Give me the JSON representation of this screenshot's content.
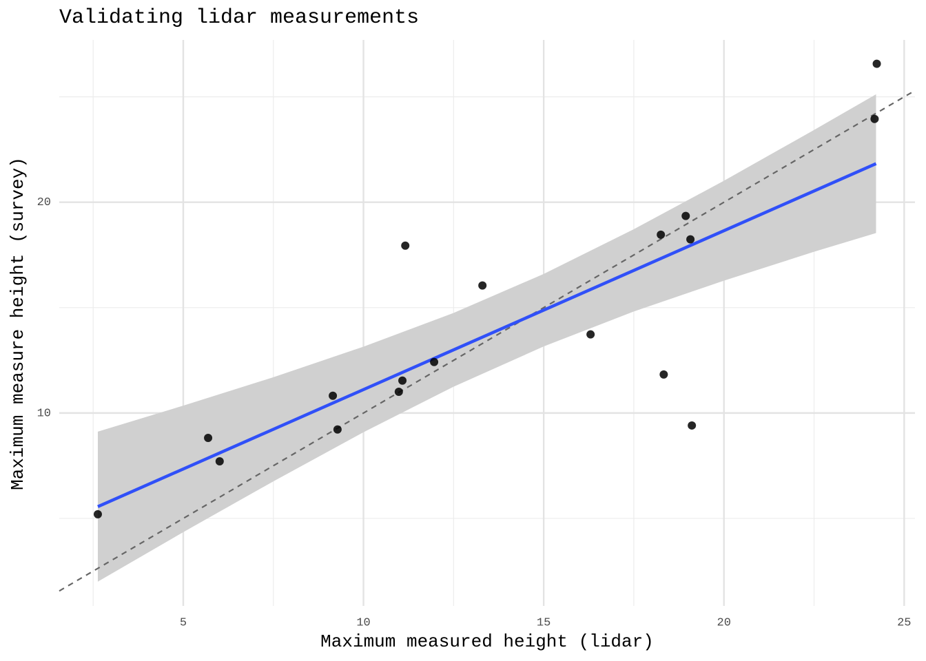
{
  "chart_data": {
    "type": "scatter",
    "title": "Validating lidar measurements",
    "x_label": "Maximum measured height (lidar)",
    "y_label": "Maximum measure height (survey)",
    "xlim": [
      1.56,
      25.3
    ],
    "ylim": [
      0.85,
      27.7
    ],
    "xticks": [
      5,
      10,
      15,
      20,
      25
    ],
    "yticks": [
      10,
      20
    ],
    "x_minor_grid": [
      2.5,
      7.5,
      12.5,
      17.5,
      22.5
    ],
    "y_minor_grid": [
      5,
      15,
      25
    ],
    "grid": true,
    "series": [
      {
        "color": "#000000",
        "x": [
          2.63,
          5.69,
          6.01,
          9.15,
          9.28,
          10.98,
          11.08,
          11.16,
          11.96,
          13.3,
          16.3,
          18.25,
          18.33,
          18.94,
          19.07,
          19.11,
          24.18,
          24.24
        ],
        "values": [
          5.2,
          8.82,
          7.71,
          10.82,
          9.22,
          11.01,
          11.54,
          17.94,
          12.42,
          16.05,
          13.73,
          18.46,
          11.83,
          19.35,
          18.24,
          9.41,
          23.95,
          26.57
        ]
      }
    ],
    "fit": {
      "color": "#3050f8",
      "x": [
        2.63,
        24.22
      ],
      "values": [
        5.56,
        21.83
      ]
    },
    "band": {
      "color": "#d0d0d0",
      "x": [
        2.63,
        5,
        7.5,
        10,
        12.5,
        15,
        17.5,
        20,
        22.5,
        24.22
      ],
      "lower": [
        2.0,
        4.35,
        6.76,
        9.09,
        11.25,
        13.16,
        14.82,
        16.28,
        17.65,
        18.54
      ],
      "upper": [
        9.12,
        10.35,
        11.7,
        13.15,
        14.75,
        16.6,
        18.72,
        21.02,
        23.43,
        25.12
      ]
    },
    "reference_line": {
      "color": "#666666",
      "slope": 1,
      "intercept": 0
    }
  }
}
